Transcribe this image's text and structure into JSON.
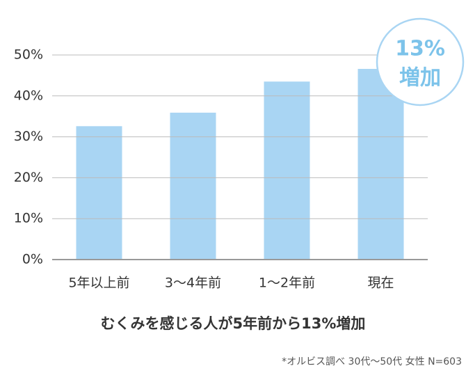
{
  "chart_data": {
    "type": "bar",
    "title": "むくみを感じる人が5年前から13%増加",
    "note": "*オルビス調べ  30代〜50代 女性 N=603",
    "annotation": [
      "13%",
      "増加"
    ],
    "categories": [
      "5年以上前",
      "3〜4年前",
      "1〜2年前",
      "現在"
    ],
    "values": [
      32.6,
      35.9,
      43.5,
      46.6
    ],
    "color": "#a9d5f3",
    "ylim": [
      0,
      50
    ],
    "yticks": [
      {
        "value": 0,
        "label": "0%"
      },
      {
        "value": 10,
        "label": "10%"
      },
      {
        "value": 20,
        "label": "20%"
      },
      {
        "value": 30,
        "label": "30%"
      },
      {
        "value": 40,
        "label": "40%"
      },
      {
        "value": 50,
        "label": "50%"
      }
    ],
    "grid": true
  }
}
